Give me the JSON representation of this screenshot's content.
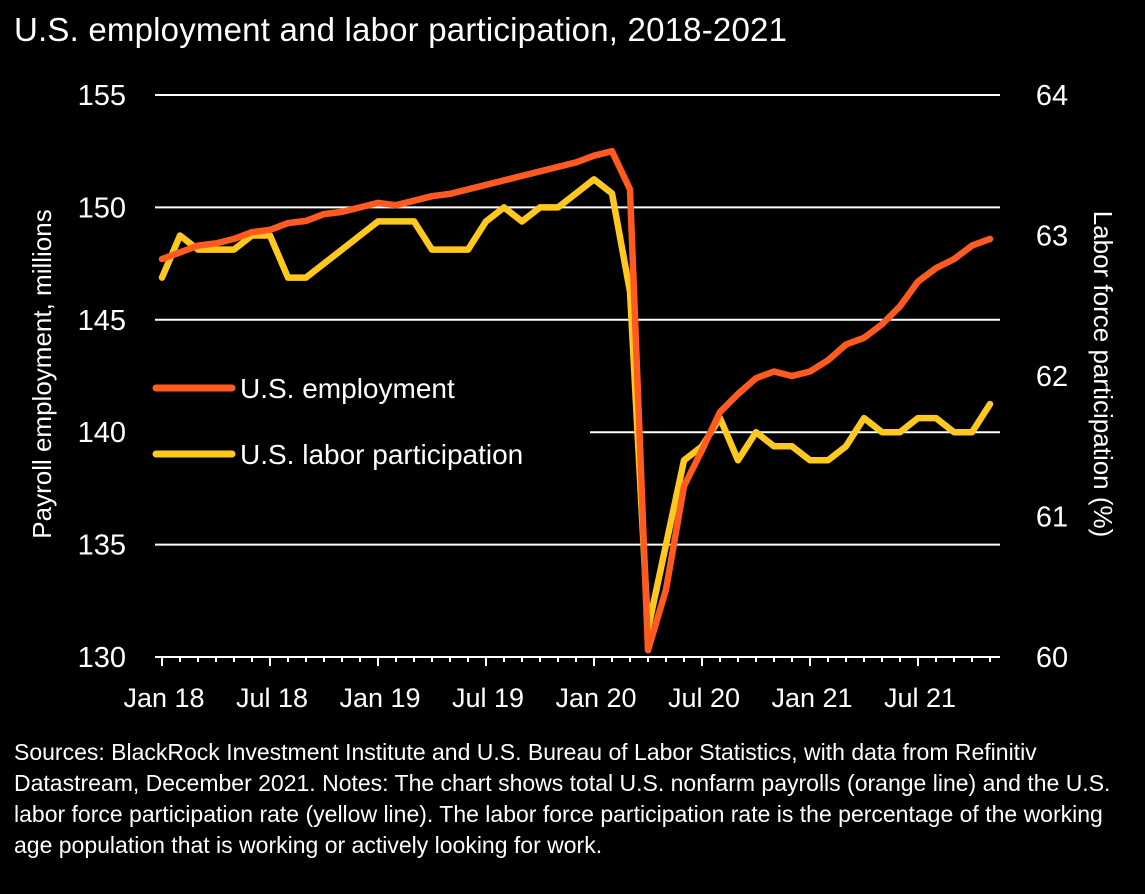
{
  "title": "U.S. employment and labor participation, 2018-2021",
  "footnote": "Sources: BlackRock Investment Institute and U.S. Bureau of Labor Statistics, with data from Refinitiv Datastream, December 2021. Notes: The chart shows total U.S. nonfarm payrolls (orange line) and the U.S. labor force participation rate (yellow line). The labor force participation rate is the percentage of the working age population that is working or actively looking for work.",
  "colors": {
    "background": "#000000",
    "employment": "#ff5a1f",
    "participation": "#ffc81e",
    "grid": "#ffffff",
    "text": "#ffffff"
  },
  "chart_data": {
    "type": "line",
    "title": "U.S. employment and labor participation, 2018-2021",
    "x_tick_labels": [
      "Jan 18",
      "Jul 18",
      "Jan 19",
      "Jul 19",
      "Jan 20",
      "Jul 20",
      "Jan 21",
      "Jul 21"
    ],
    "x": [
      "2018-01",
      "2018-02",
      "2018-03",
      "2018-04",
      "2018-05",
      "2018-06",
      "2018-07",
      "2018-08",
      "2018-09",
      "2018-10",
      "2018-11",
      "2018-12",
      "2019-01",
      "2019-02",
      "2019-03",
      "2019-04",
      "2019-05",
      "2019-06",
      "2019-07",
      "2019-08",
      "2019-09",
      "2019-10",
      "2019-11",
      "2019-12",
      "2020-01",
      "2020-02",
      "2020-03",
      "2020-04",
      "2020-05",
      "2020-06",
      "2020-07",
      "2020-08",
      "2020-09",
      "2020-10",
      "2020-11",
      "2020-12",
      "2021-01",
      "2021-02",
      "2021-03",
      "2021-04",
      "2021-05",
      "2021-06",
      "2021-07",
      "2021-08",
      "2021-09",
      "2021-10",
      "2021-11"
    ],
    "y_left": {
      "label": "Payroll employment, millions",
      "lim": [
        130,
        155
      ],
      "ticks": [
        130,
        135,
        140,
        145,
        150,
        155
      ]
    },
    "y_right": {
      "label": "Labor force participation (%)",
      "lim": [
        60,
        64
      ],
      "ticks": [
        60,
        61,
        62,
        63,
        64
      ]
    },
    "grid": true,
    "legend_position": "center-left",
    "series": [
      {
        "name": "U.S. employment",
        "axis": "left",
        "color": "#ff5a1f",
        "values": [
          147.7,
          148.0,
          148.3,
          148.4,
          148.6,
          148.9,
          149.0,
          149.3,
          149.4,
          149.7,
          149.8,
          150.0,
          150.2,
          150.1,
          150.3,
          150.5,
          150.6,
          150.8,
          151.0,
          151.2,
          151.4,
          151.6,
          151.8,
          152.0,
          152.3,
          152.5,
          150.8,
          130.3,
          133.0,
          137.6,
          139.2,
          140.9,
          141.7,
          142.4,
          142.7,
          142.5,
          142.7,
          143.2,
          143.9,
          144.2,
          144.8,
          145.6,
          146.7,
          147.3,
          147.7,
          148.3,
          148.6
        ]
      },
      {
        "name": "U.S. labor participation",
        "axis": "right",
        "color": "#ffc81e",
        "values": [
          62.7,
          63.0,
          62.9,
          62.9,
          62.9,
          63.0,
          63.0,
          62.7,
          62.7,
          62.8,
          62.9,
          63.0,
          63.1,
          63.1,
          63.1,
          62.9,
          62.9,
          62.9,
          63.1,
          63.2,
          63.1,
          63.2,
          63.2,
          63.3,
          63.4,
          63.3,
          62.6,
          60.2,
          60.8,
          61.4,
          61.5,
          61.7,
          61.4,
          61.6,
          61.5,
          61.5,
          61.4,
          61.4,
          61.5,
          61.7,
          61.6,
          61.6,
          61.7,
          61.7,
          61.6,
          61.6,
          61.8
        ]
      }
    ]
  }
}
